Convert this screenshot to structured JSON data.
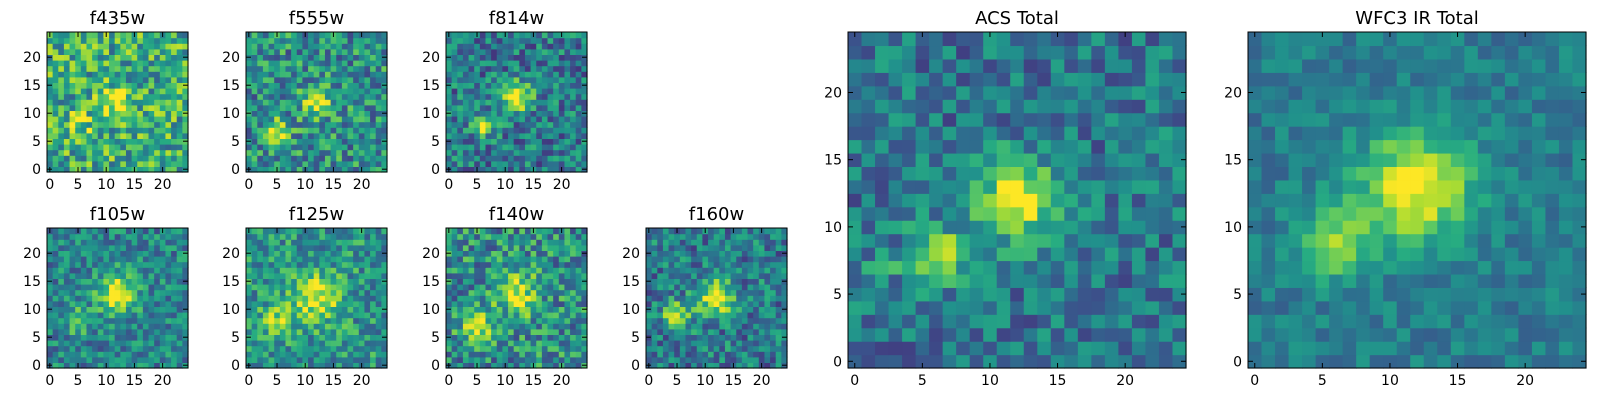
{
  "figure": {
    "background": "#ffffff"
  },
  "chart_data": [
    {
      "id": "f435w",
      "type": "heatmap",
      "title": "f435w",
      "grid_size": 25,
      "xlim": [
        0,
        24
      ],
      "ylim": [
        0,
        24
      ],
      "xticks": [
        0,
        5,
        10,
        15,
        20
      ],
      "yticks": [
        0,
        5,
        10,
        15,
        20
      ],
      "sources": [
        {
          "x": 12,
          "y": 12,
          "amp": 0.35,
          "sigma": 2.0
        },
        {
          "x": 5,
          "y": 8,
          "amp": 0.25,
          "sigma": 1.6
        }
      ],
      "background_level": 0.62,
      "noise": 0.3,
      "seed": 11
    },
    {
      "id": "f555w",
      "type": "heatmap",
      "title": "f555w",
      "grid_size": 25,
      "xlim": [
        0,
        24
      ],
      "ylim": [
        0,
        24
      ],
      "xticks": [
        0,
        5,
        10,
        15,
        20
      ],
      "yticks": [
        0,
        5,
        10,
        15,
        20
      ],
      "sources": [
        {
          "x": 12,
          "y": 12,
          "amp": 0.5,
          "sigma": 1.8
        },
        {
          "x": 5,
          "y": 7,
          "amp": 0.55,
          "sigma": 1.4
        }
      ],
      "background_level": 0.5,
      "noise": 0.28,
      "seed": 23
    },
    {
      "id": "f814w",
      "type": "heatmap",
      "title": "f814w",
      "grid_size": 25,
      "xlim": [
        0,
        24
      ],
      "ylim": [
        0,
        24
      ],
      "xticks": [
        0,
        5,
        10,
        15,
        20
      ],
      "yticks": [
        0,
        5,
        10,
        15,
        20
      ],
      "sources": [
        {
          "x": 12,
          "y": 13,
          "amp": 0.65,
          "sigma": 1.8
        },
        {
          "x": 6,
          "y": 8,
          "amp": 0.55,
          "sigma": 1.3
        }
      ],
      "background_level": 0.42,
      "noise": 0.25,
      "seed": 37
    },
    {
      "id": "f105w",
      "type": "heatmap",
      "title": "f105w",
      "grid_size": 25,
      "xlim": [
        0,
        24
      ],
      "ylim": [
        0,
        24
      ],
      "xticks": [
        0,
        5,
        10,
        15,
        20
      ],
      "yticks": [
        0,
        5,
        10,
        15,
        20
      ],
      "sources": [
        {
          "x": 12,
          "y": 13,
          "amp": 0.6,
          "sigma": 2.4
        },
        {
          "x": 5,
          "y": 8,
          "amp": 0.3,
          "sigma": 1.6
        }
      ],
      "background_level": 0.45,
      "noise": 0.22,
      "seed": 41
    },
    {
      "id": "f125w",
      "type": "heatmap",
      "title": "f125w",
      "grid_size": 25,
      "xlim": [
        0,
        24
      ],
      "ylim": [
        0,
        24
      ],
      "xticks": [
        0,
        5,
        10,
        15,
        20
      ],
      "yticks": [
        0,
        5,
        10,
        15,
        20
      ],
      "sources": [
        {
          "x": 12,
          "y": 12,
          "amp": 0.45,
          "sigma": 3.0
        },
        {
          "x": 5,
          "y": 8,
          "amp": 0.3,
          "sigma": 2.0
        }
      ],
      "background_level": 0.52,
      "noise": 0.24,
      "seed": 53
    },
    {
      "id": "f140w",
      "type": "heatmap",
      "title": "f140w",
      "grid_size": 25,
      "xlim": [
        0,
        24
      ],
      "ylim": [
        0,
        24
      ],
      "xticks": [
        0,
        5,
        10,
        15,
        20
      ],
      "yticks": [
        0,
        5,
        10,
        15,
        20
      ],
      "sources": [
        {
          "x": 12,
          "y": 13,
          "amp": 0.45,
          "sigma": 2.6
        },
        {
          "x": 5,
          "y": 7,
          "amp": 0.4,
          "sigma": 1.8
        }
      ],
      "background_level": 0.5,
      "noise": 0.28,
      "seed": 67
    },
    {
      "id": "f160w",
      "type": "heatmap",
      "title": "f160w",
      "grid_size": 25,
      "xlim": [
        0,
        24
      ],
      "ylim": [
        0,
        24
      ],
      "xticks": [
        0,
        5,
        10,
        15,
        20
      ],
      "yticks": [
        0,
        5,
        10,
        15,
        20
      ],
      "sources": [
        {
          "x": 12,
          "y": 12,
          "amp": 0.6,
          "sigma": 2.2
        },
        {
          "x": 5,
          "y": 9,
          "amp": 0.45,
          "sigma": 1.8
        }
      ],
      "background_level": 0.42,
      "noise": 0.24,
      "seed": 79
    },
    {
      "id": "acs-total",
      "type": "heatmap",
      "title": "ACS Total",
      "grid_size": 25,
      "xlim": [
        0,
        24
      ],
      "ylim": [
        0,
        24
      ],
      "xticks": [
        0,
        5,
        10,
        15,
        20
      ],
      "yticks": [
        0,
        5,
        10,
        15,
        20
      ],
      "sources": [
        {
          "x": 12,
          "y": 12,
          "amp": 0.65,
          "sigma": 2.0
        },
        {
          "x": 6,
          "y": 8,
          "amp": 0.55,
          "sigma": 1.4
        },
        {
          "x": 2,
          "y": 7,
          "amp": 0.45,
          "sigma": 0.6
        }
      ],
      "background_level": 0.4,
      "noise": 0.2,
      "seed": 97
    },
    {
      "id": "wfc3-ir-total",
      "type": "heatmap",
      "title": "WFC3 IR Total",
      "grid_size": 25,
      "xlim": [
        0,
        24
      ],
      "ylim": [
        0,
        24
      ],
      "xticks": [
        0,
        5,
        10,
        15,
        20
      ],
      "yticks": [
        0,
        5,
        10,
        15,
        20
      ],
      "sources": [
        {
          "x": 12,
          "y": 13,
          "amp": 0.6,
          "sigma": 2.8
        },
        {
          "x": 6,
          "y": 9,
          "amp": 0.4,
          "sigma": 2.0
        }
      ],
      "background_level": 0.42,
      "noise": 0.12,
      "seed": 113
    }
  ],
  "colormap": "viridis"
}
